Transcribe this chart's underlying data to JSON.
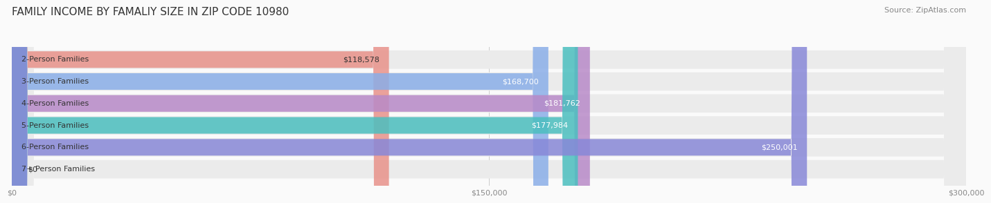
{
  "title": "FAMILY INCOME BY FAMALIY SIZE IN ZIP CODE 10980",
  "source": "Source: ZipAtlas.com",
  "categories": [
    "2-Person Families",
    "3-Person Families",
    "4-Person Families",
    "5-Person Families",
    "6-Person Families",
    "7+ Person Families"
  ],
  "values": [
    118578,
    168700,
    181762,
    177984,
    250001,
    0
  ],
  "labels": [
    "$118,578",
    "$168,700",
    "$181,762",
    "$177,984",
    "$250,001",
    "$0"
  ],
  "bar_colors": [
    "#E8928A",
    "#8AAEE8",
    "#B88AC8",
    "#4BBFBF",
    "#8888D8",
    "#F0A0B0"
  ],
  "xlim": [
    0,
    300000
  ],
  "xticks": [
    0,
    150000,
    300000
  ],
  "xticklabels": [
    "$0",
    "$150,000",
    "$300,000"
  ],
  "title_fontsize": 11,
  "source_fontsize": 8,
  "label_fontsize": 8,
  "cat_fontsize": 8,
  "background_color": "#FAFAFA"
}
